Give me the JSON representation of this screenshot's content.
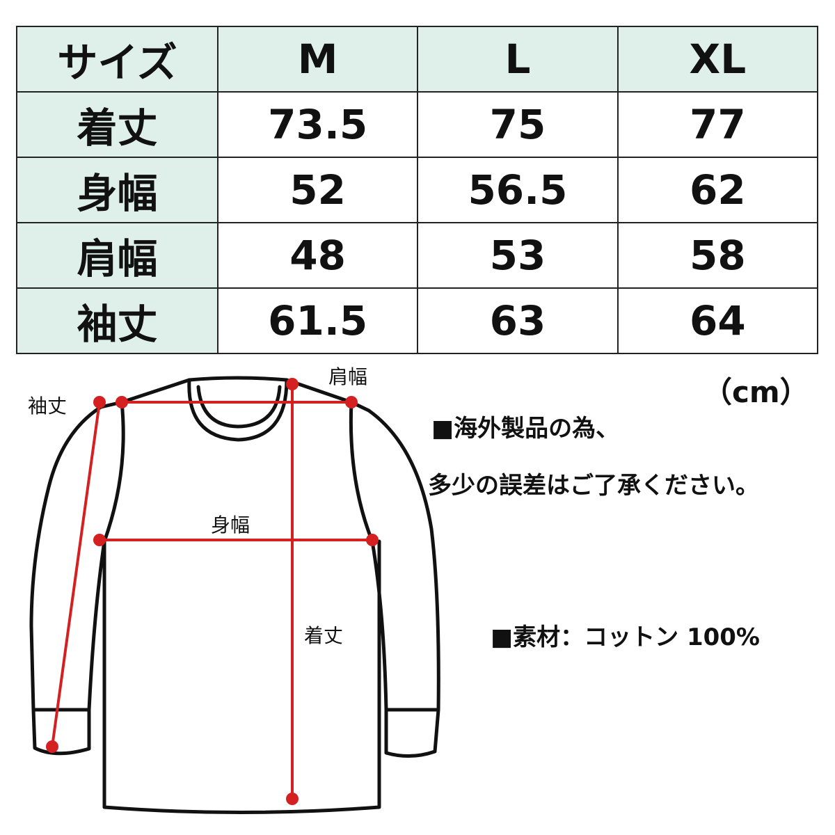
{
  "table": {
    "header": [
      "サイズ",
      "M",
      "L",
      "XL"
    ],
    "rows": [
      {
        "label": "着丈",
        "values": [
          "73.5",
          "75",
          "77"
        ]
      },
      {
        "label": "身幅",
        "values": [
          "52",
          "56.5",
          "62"
        ]
      },
      {
        "label": "肩幅",
        "values": [
          "48",
          "53",
          "58"
        ]
      },
      {
        "label": "袖丈",
        "values": [
          "61.5",
          "63",
          "64"
        ]
      }
    ]
  },
  "diagram": {
    "labels": {
      "sleeve": "袖丈",
      "shoulder": "肩幅",
      "chest": "身幅",
      "length": "着丈"
    },
    "line_color": "#d42020"
  },
  "unit": "（cm）",
  "notes": [
    "■海外製品の為、",
    "多少の誤差はご了承ください。",
    "■素材：コットン 100%"
  ],
  "colors": {
    "header_bg": "#dff0eb",
    "measure_red": "#d42020"
  }
}
